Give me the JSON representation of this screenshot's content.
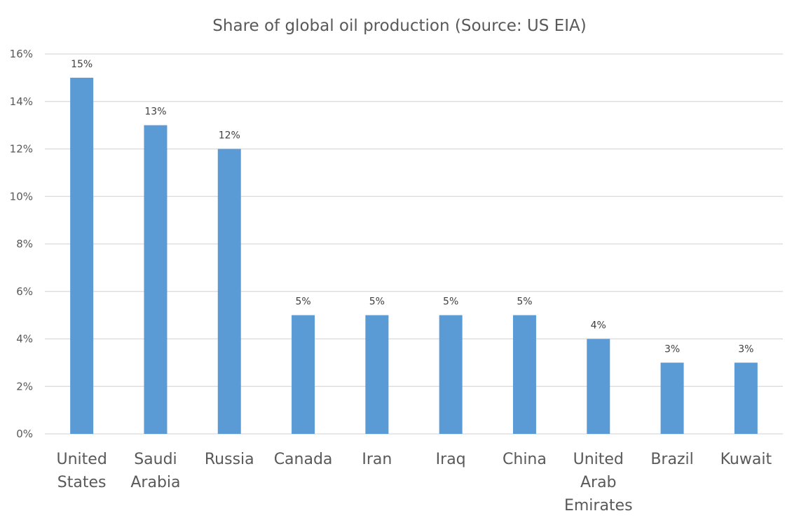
{
  "chart_data": {
    "type": "bar",
    "title": "Share of global oil production (Source: US EIA)",
    "xlabel": "",
    "ylabel": "",
    "categories": [
      "United States",
      "Saudi Arabia",
      "Russia",
      "Canada",
      "Iran",
      "Iraq",
      "China",
      "United Arab Emirates",
      "Brazil",
      "Kuwait"
    ],
    "category_lines": [
      [
        "United",
        "States"
      ],
      [
        "Saudi",
        "Arabia"
      ],
      [
        "Russia"
      ],
      [
        "Canada"
      ],
      [
        "Iran"
      ],
      [
        "Iraq"
      ],
      [
        "China"
      ],
      [
        "United",
        "Arab",
        "Emirates"
      ],
      [
        "Brazil"
      ],
      [
        "Kuwait"
      ]
    ],
    "values": [
      15,
      13,
      12,
      5,
      5,
      5,
      5,
      4,
      3,
      3
    ],
    "data_labels": [
      "15%",
      "13%",
      "12%",
      "5%",
      "5%",
      "5%",
      "5%",
      "4%",
      "3%",
      "3%"
    ],
    "ylim": [
      0,
      16
    ],
    "yticks": [
      0,
      2,
      4,
      6,
      8,
      10,
      12,
      14,
      16
    ],
    "ytick_labels": [
      "0%",
      "2%",
      "4%",
      "6%",
      "8%",
      "10%",
      "12%",
      "14%",
      "16%"
    ],
    "grid": true,
    "legend": "none",
    "bar_color": "#5b9bd5"
  }
}
